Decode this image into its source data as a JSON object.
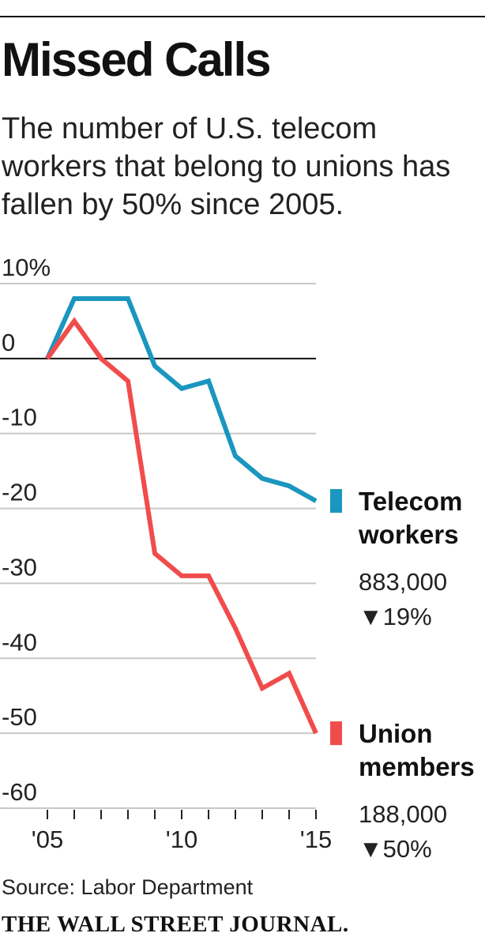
{
  "title": "Missed Calls",
  "subtitle": "The number of U.S. telecom workers that belong to unions has fallen by 50% since 2005.",
  "source": "Source: Labor Department",
  "masthead": "THE WALL STREET JOURNAL.",
  "chart_data": {
    "type": "line",
    "title": "Missed Calls",
    "xlabel": "",
    "ylabel": "",
    "x": [
      2005,
      2006,
      2007,
      2008,
      2009,
      2010,
      2011,
      2012,
      2013,
      2014,
      2015
    ],
    "xlim": [
      2005,
      2015
    ],
    "ylim": [
      -60,
      10
    ],
    "yticks": [
      10,
      0,
      -10,
      -20,
      -30,
      -40,
      -50,
      -60
    ],
    "ytick_labels": [
      "10%",
      "0",
      "-10",
      "-20",
      "-30",
      "-40",
      "-50",
      "-60"
    ],
    "xtick_labels": [
      {
        "x": 2005,
        "label": "'05"
      },
      {
        "x": 2010,
        "label": "'10"
      },
      {
        "x": 2015,
        "label": "'15"
      }
    ],
    "series": [
      {
        "name": "Telecom workers",
        "label_line1": "Telecom",
        "label_line2": "workers",
        "color": "#1a96bf",
        "values": [
          0,
          8,
          8,
          8,
          -1,
          -4,
          -3,
          -13,
          -16,
          -17,
          -19
        ],
        "count": "883,000",
        "change": "▼19%"
      },
      {
        "name": "Union members",
        "label_line1": "Union",
        "label_line2": "members",
        "color": "#f14c4c",
        "values": [
          0,
          5,
          0,
          -3,
          -26,
          -29,
          -29,
          -36,
          -44,
          -42,
          -50
        ],
        "count": "188,000",
        "change": "▼50%"
      }
    ]
  }
}
